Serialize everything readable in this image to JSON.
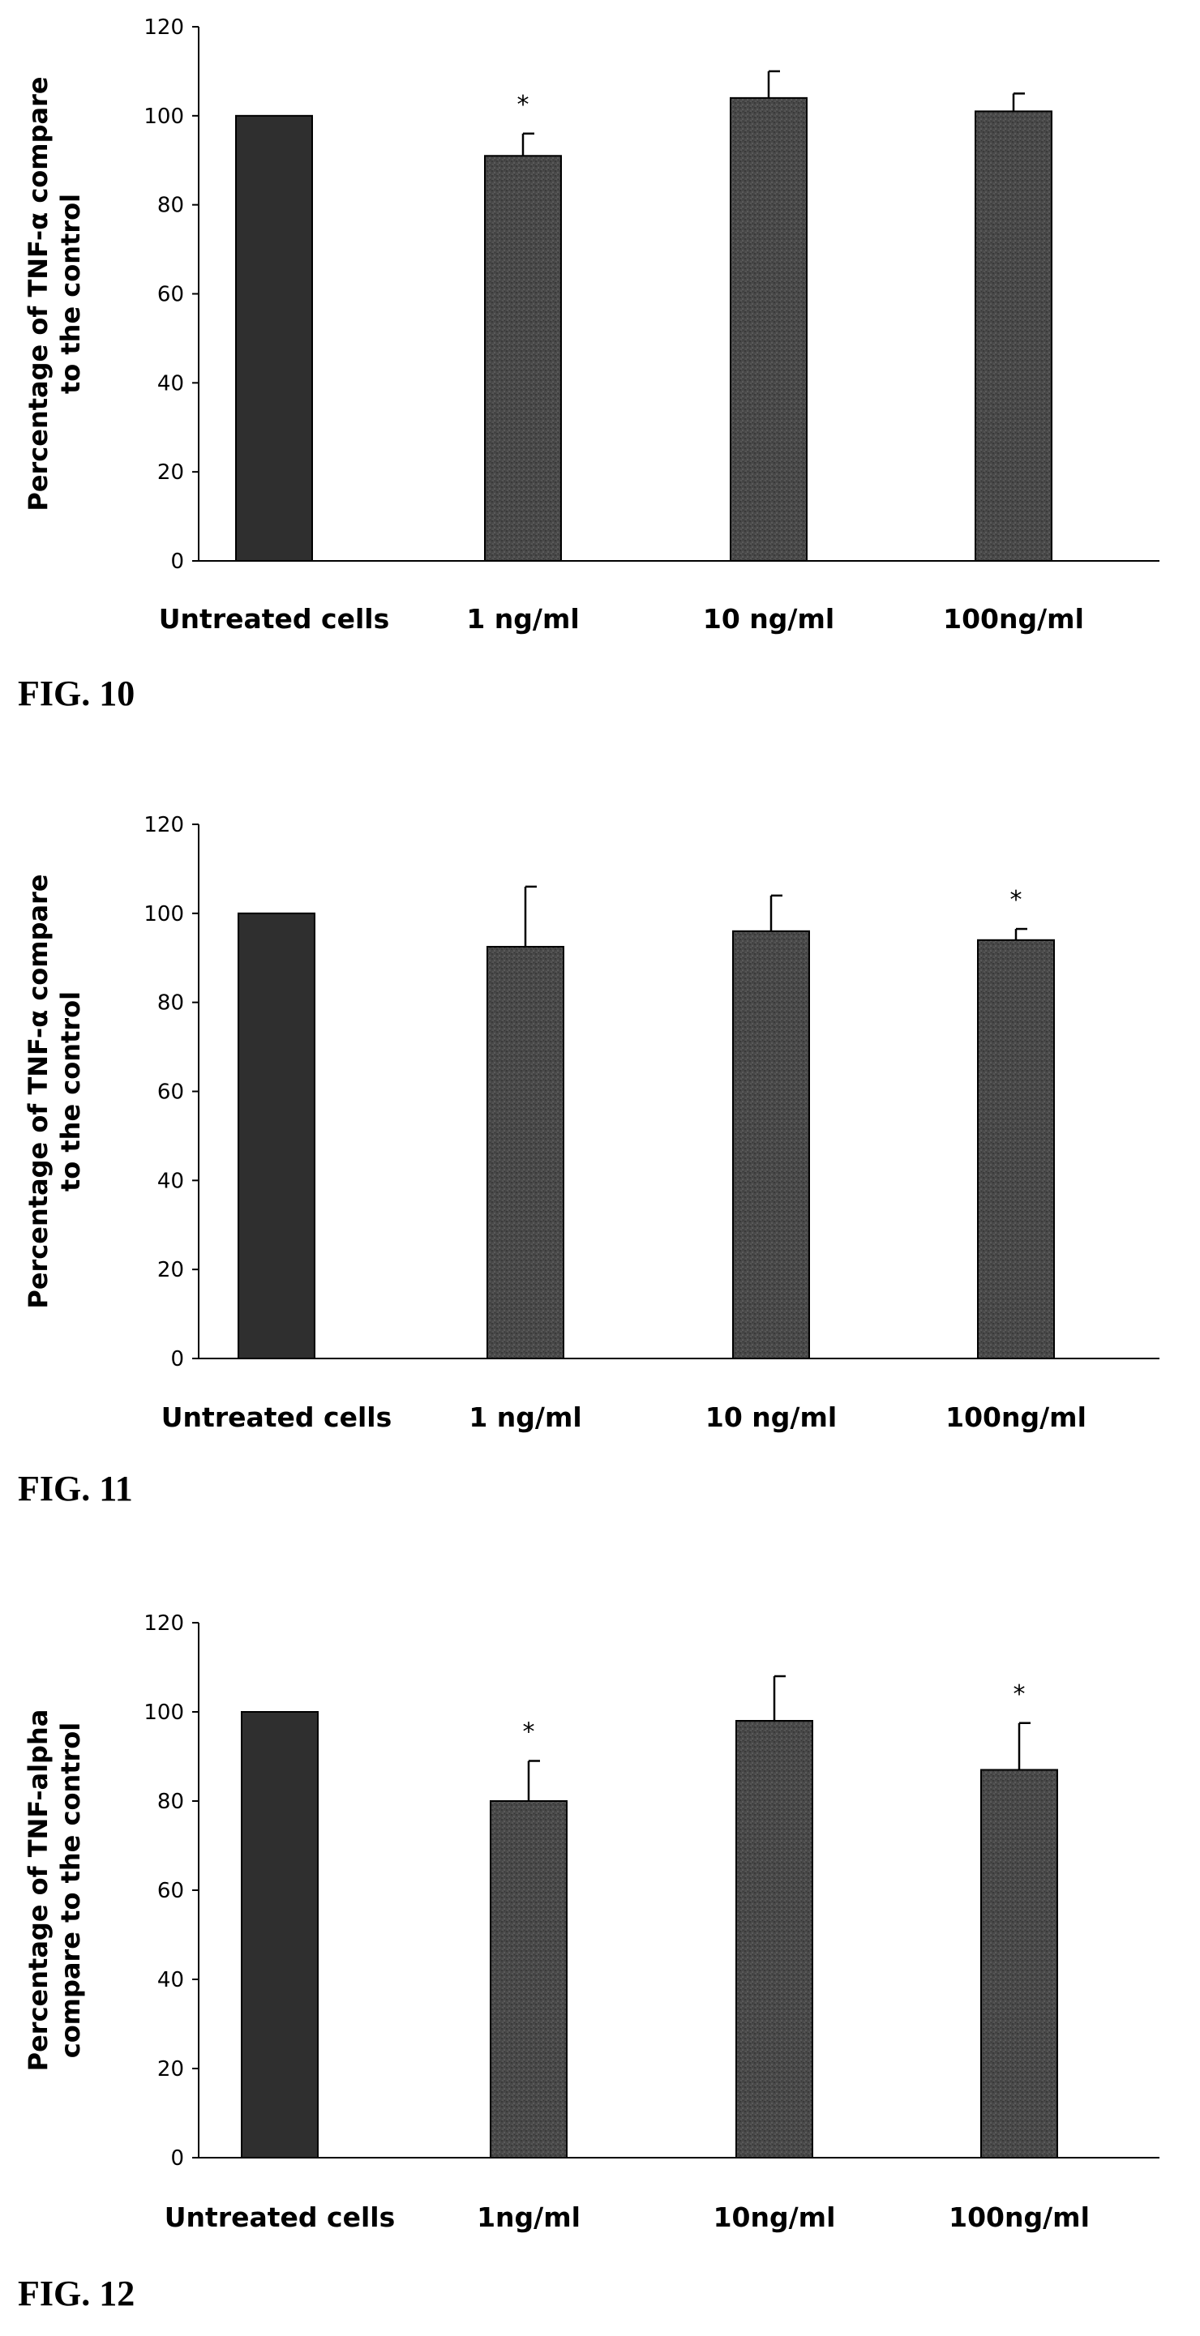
{
  "bar_colors": [
    "#2f2f2f",
    "#4b4b4b"
  ],
  "chart_data": [
    {
      "type": "bar",
      "figure_label": "FIG. 10",
      "ylabel_lines": [
        "Percentage of TNF-α compare",
        "to the control"
      ],
      "ylim": [
        0,
        120
      ],
      "yticks": [
        0,
        20,
        40,
        60,
        80,
        100,
        120
      ],
      "categories": [
        "Untreated cells",
        "1 ng/ml",
        "10 ng/ml",
        "100ng/ml"
      ],
      "values": [
        100,
        91,
        104,
        101
      ],
      "errors": [
        0,
        5,
        6,
        4
      ],
      "significance": [
        "",
        "*",
        "",
        ""
      ]
    },
    {
      "type": "bar",
      "figure_label": "FIG. 11",
      "ylabel_lines": [
        "Percentage of TNF-α compare",
        "to the control"
      ],
      "ylim": [
        0,
        120
      ],
      "yticks": [
        0,
        20,
        40,
        60,
        80,
        100,
        120
      ],
      "categories": [
        "Untreated cells",
        "1 ng/ml",
        "10 ng/ml",
        "100ng/ml"
      ],
      "values": [
        100,
        92.5,
        96,
        94
      ],
      "errors": [
        0,
        13.5,
        8,
        2.5
      ],
      "significance": [
        "",
        "",
        "",
        "*"
      ]
    },
    {
      "type": "bar",
      "figure_label": "FIG. 12",
      "ylabel_lines": [
        "Percentage of TNF-alpha",
        "compare to the control"
      ],
      "ylim": [
        0,
        120
      ],
      "yticks": [
        0,
        20,
        40,
        60,
        80,
        100,
        120
      ],
      "categories": [
        "Untreated cells",
        "1ng/ml",
        "10ng/ml",
        "100ng/ml"
      ],
      "values": [
        100,
        80,
        98,
        87
      ],
      "errors": [
        0,
        9,
        10,
        10.5
      ],
      "significance": [
        "",
        "*",
        "",
        "*"
      ]
    }
  ]
}
